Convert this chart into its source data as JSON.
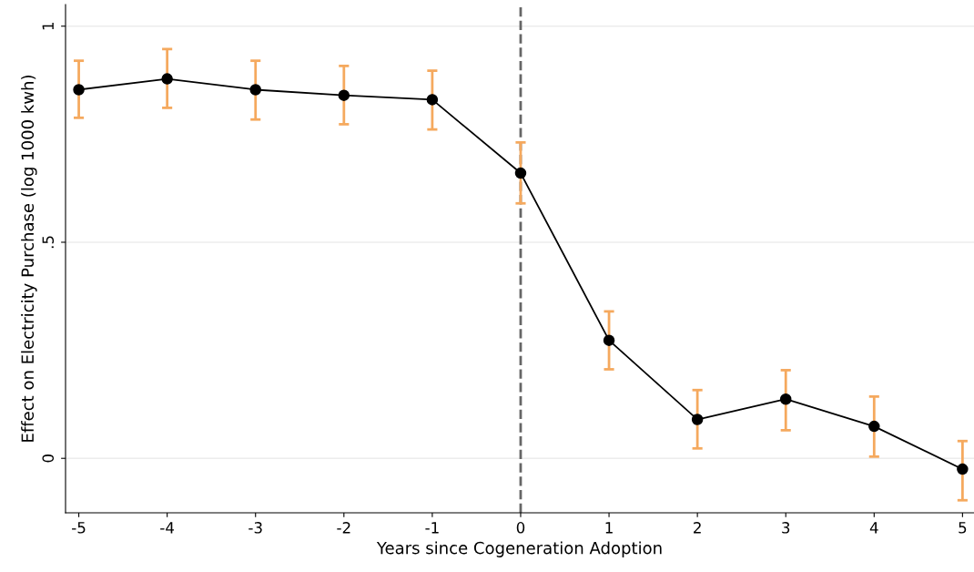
{
  "chart_data": {
    "type": "line",
    "xlabel": "Years since Cogeneration Adoption",
    "ylabel": "Effect on Electricity Purchase (log 1000 kwh)",
    "x": [
      -5,
      -4,
      -3,
      -2,
      -1,
      0,
      1,
      2,
      3,
      4,
      5
    ],
    "series": [
      {
        "color": "#000000",
        "values": [
          0.853,
          0.878,
          0.853,
          0.84,
          0.83,
          0.66,
          0.273,
          0.09,
          0.137,
          0.074,
          -0.025
        ],
        "errors": [
          [
            0.788,
            0.92
          ],
          [
            0.811,
            0.947
          ],
          [
            0.784,
            0.92
          ],
          [
            0.773,
            0.908
          ],
          [
            0.761,
            0.897
          ],
          [
            0.59,
            0.731
          ],
          [
            0.206,
            0.34
          ],
          [
            0.023,
            0.158
          ],
          [
            0.065,
            0.204
          ],
          [
            0.004,
            0.143
          ],
          [
            -0.097,
            0.04
          ]
        ]
      }
    ],
    "marker": "circle",
    "line_style": "solid",
    "xlim": [
      -5.15,
      5.13
    ],
    "xticks": [
      -5,
      -4,
      -3,
      -2,
      -1,
      0,
      1,
      2,
      3,
      4,
      5
    ],
    "ylim": [
      -0.126,
      1.05
    ],
    "yticks": [
      0,
      {
        "value": 0.5,
        "label": ".5"
      },
      1
    ],
    "grid": "y",
    "ref_lines": [
      {
        "axis": "x",
        "value": 0,
        "color": "#666666",
        "line_style": "dashed"
      }
    ]
  }
}
